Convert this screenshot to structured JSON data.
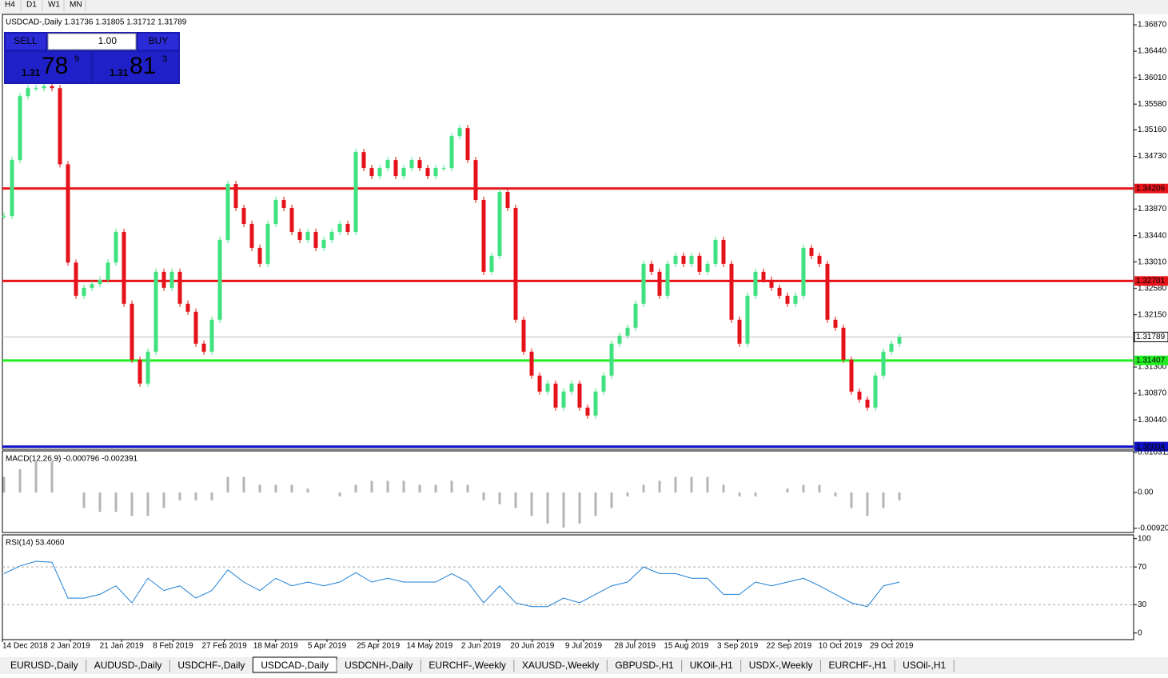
{
  "toolbar": {
    "timeframes": [
      "H4",
      "D1",
      "W1",
      "MN"
    ]
  },
  "trade_panel": {
    "sell": "SELL",
    "buy": "BUY",
    "lot": "1.00",
    "sell_price": {
      "big": "1.31",
      "pips": "78",
      "point": "9"
    },
    "buy_price": {
      "big": "1.31",
      "pips": "81",
      "point": "3"
    }
  },
  "chart_data": [
    {
      "type": "candlestick",
      "title": "USDCAD-,Daily 1.31736 1.31805 1.31712 1.31789",
      "values": [
        1.3376,
        1.3467,
        1.3571,
        1.3584,
        1.3584,
        1.3587,
        1.3584,
        1.346,
        1.33,
        1.3246,
        1.3259,
        1.3265,
        1.3272,
        1.33,
        1.335,
        1.3233,
        1.3142,
        1.3103,
        1.3155,
        1.3285,
        1.3259,
        1.3285,
        1.3233,
        1.322,
        1.3168,
        1.3155,
        1.3207,
        1.3337,
        1.3428,
        1.3389,
        1.3363,
        1.3324,
        1.3298,
        1.3363,
        1.3402,
        1.3389,
        1.335,
        1.3337,
        1.335,
        1.3324,
        1.3337,
        1.335,
        1.3363,
        1.335,
        1.348,
        1.3454,
        1.3441,
        1.3454,
        1.3467,
        1.3441,
        1.3454,
        1.3467,
        1.3454,
        1.3441,
        1.3454,
        1.3454,
        1.3506,
        1.3519,
        1.3467,
        1.3402,
        1.3285,
        1.3311,
        1.3415,
        1.3389,
        1.3207,
        1.3155,
        1.3116,
        1.309,
        1.3103,
        1.3064,
        1.309,
        1.3103,
        1.3064,
        1.3051,
        1.309,
        1.3116,
        1.3168,
        1.3181,
        1.3194,
        1.3233,
        1.3298,
        1.3285,
        1.3246,
        1.3298,
        1.3311,
        1.3298,
        1.3311,
        1.3285,
        1.3298,
        1.3337,
        1.3298,
        1.3207,
        1.3168,
        1.3246,
        1.3285,
        1.3272,
        1.3259,
        1.3246,
        1.3233,
        1.3246,
        1.3324,
        1.3311,
        1.3298,
        1.3207,
        1.3194,
        1.3142,
        1.309,
        1.3077,
        1.3064,
        1.3116,
        1.3155,
        1.3168,
        1.3179
      ],
      "up_color": "#3fe27f",
      "down_color": "#e4121b",
      "ylim": [
        1.2996,
        1.3704
      ],
      "yticks": [
        {
          "value": 1.3687,
          "label": "1.36870"
        },
        {
          "value": 1.3644,
          "label": "1.36440"
        },
        {
          "value": 1.3601,
          "label": "1.36010"
        },
        {
          "value": 1.3558,
          "label": "1.35580"
        },
        {
          "value": 1.3516,
          "label": "1.35160"
        },
        {
          "value": 1.3473,
          "label": "1.34730"
        },
        {
          "value": 1.3387,
          "label": "1.33870"
        },
        {
          "value": 1.3344,
          "label": "1.33440"
        },
        {
          "value": 1.3301,
          "label": "1.33010"
        },
        {
          "value": 1.3258,
          "label": "1.32580"
        },
        {
          "value": 1.3215,
          "label": "1.32150"
        },
        {
          "value": 1.313,
          "label": "1.31300"
        },
        {
          "value": 1.3087,
          "label": "1.30870"
        },
        {
          "value": 1.3044,
          "label": "1.30440"
        }
      ],
      "levels": [
        {
          "value": 1.34206,
          "color": "#e8141b"
        },
        {
          "value": 1.32701,
          "color": "#e8141b"
        },
        {
          "value": 1.31407,
          "color": "#22ee22"
        },
        {
          "value": 1.30004,
          "color": "#1010c8"
        }
      ],
      "bid": 1.31789,
      "date_labels": [
        "14 Dec 2018",
        "2 Jan 2019",
        "21 Jan 2019",
        "8 Feb 2019",
        "27 Feb 2019",
        "18 Mar 2019",
        "5 Apr 2019",
        "25 Apr 2019",
        "14 May 2019",
        "2 Jun 2019",
        "20 Jun 2019",
        "9 Jul 2019",
        "28 Jul 2019",
        "15 Aug 2019",
        "3 Sep 2019",
        "22 Sep 2019",
        "10 Oct 2019",
        "29 Oct 2019"
      ]
    },
    {
      "type": "histogram",
      "title": "MACD(12,26,9) -0.000796 -0.002391",
      "color": "#b4b4b4",
      "values": [
        0.004,
        0.006,
        0.008,
        0.008,
        0.0,
        -0.004,
        -0.005,
        -0.005,
        -0.006,
        -0.006,
        -0.004,
        -0.002,
        -0.002,
        -0.002,
        0.004,
        0.004,
        0.002,
        0.002,
        0.002,
        0.001,
        0.0,
        -0.001,
        0.002,
        0.003,
        0.003,
        0.003,
        0.002,
        0.002,
        0.003,
        0.002,
        -0.002,
        -0.003,
        -0.004,
        -0.006,
        -0.008,
        -0.009,
        -0.008,
        -0.006,
        -0.004,
        -0.001,
        0.002,
        0.003,
        0.004,
        0.004,
        0.004,
        0.002,
        -0.001,
        -0.001,
        0.0,
        0.001,
        0.002,
        0.002,
        -0.001,
        -0.004,
        -0.006,
        -0.004,
        -0.002
      ],
      "ylim": [
        -0.0103,
        0.0107
      ],
      "yticks": [
        0.010311,
        {
          "value": 0,
          "label": "0.00"
        },
        -0.009203
      ]
    },
    {
      "type": "line",
      "title": "RSI(14) 53.4060",
      "color": "#1e7fd6",
      "values": [
        63,
        71,
        76,
        75,
        37,
        37,
        41,
        50,
        32,
        58,
        45,
        50,
        37,
        45,
        67,
        54,
        45,
        58,
        50,
        54,
        50,
        54,
        64,
        54,
        58,
        54,
        54,
        54,
        63,
        54,
        32,
        50,
        32,
        28,
        28,
        37,
        32,
        41,
        50,
        54,
        70,
        63,
        63,
        58,
        58,
        41,
        41,
        54,
        50,
        54,
        58,
        50,
        41,
        32,
        28,
        50,
        54
      ],
      "ylim": [
        -7,
        104
      ],
      "yticks": [
        100,
        70,
        30,
        0
      ],
      "dashed_ticks": [
        70,
        30
      ]
    }
  ],
  "tabs": {
    "items": [
      "EURUSD-,Daily",
      "AUDUSD-,Daily",
      "USDCHF-,Daily",
      "USDCAD-,Daily",
      "USDCNH-,Daily",
      "EURCHF-,Weekly",
      "XAUUSD-,Weekly",
      "GBPUSD-,H1",
      "UKOil-,H1",
      "USDX-,Weekly",
      "EURCHF-,H1",
      "USOil-,H1"
    ],
    "active": "USDCAD-,Daily"
  }
}
